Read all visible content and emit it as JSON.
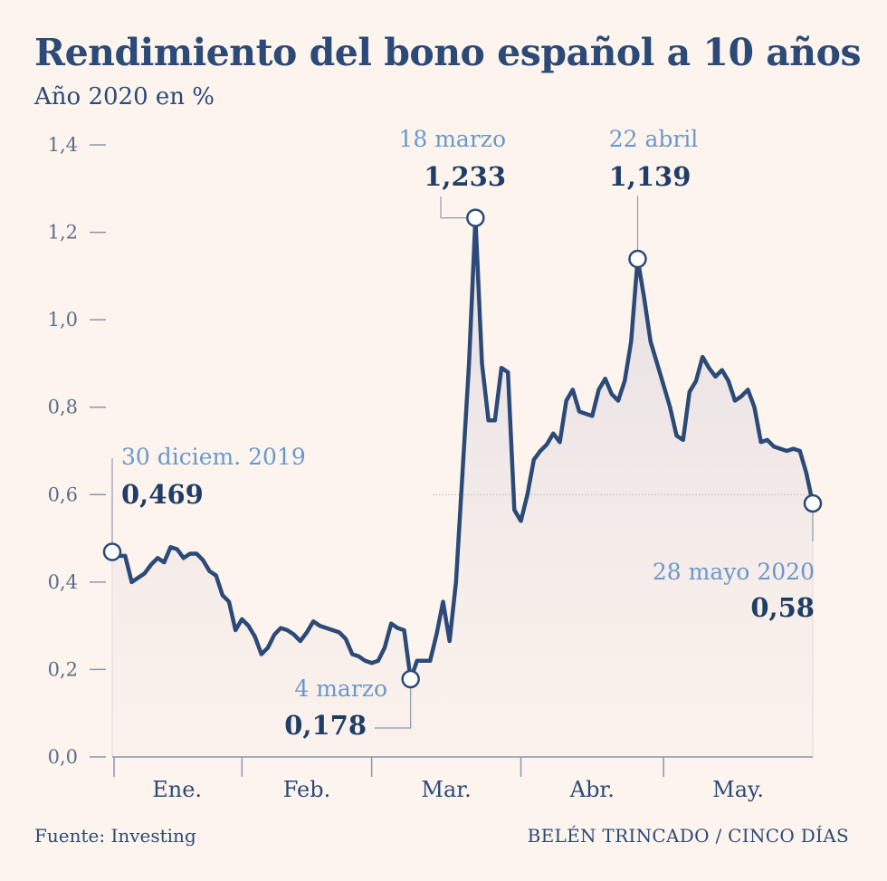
{
  "header": {
    "title": "Rendimiento del bono español a 10 años",
    "subtitle": "Año 2020 en %"
  },
  "footer": {
    "source": "Fuente: Investing",
    "credit": "BELÉN TRINCADO / CINCO DÍAS"
  },
  "colors": {
    "line": "#2b4a78",
    "annotation_date": "#6a98cc",
    "annotation_value": "#1f3d66",
    "axis": "#8a97ad",
    "background": "#fdf4ee"
  },
  "chart_data": {
    "type": "area",
    "ylim": [
      0,
      1.4
    ],
    "yticks": [
      0.0,
      0.2,
      0.4,
      0.6,
      0.8,
      1.0,
      1.2,
      1.4
    ],
    "ytick_labels": [
      "0,0",
      "0,2",
      "0,4",
      "0,6",
      "0,8",
      "1,0",
      "1,2",
      "1,4"
    ],
    "month_labels": [
      "Ene.",
      "Feb.",
      "Mar.",
      "Abr.",
      "May."
    ],
    "grid": false,
    "series": [
      {
        "values": [
          0.469,
          0.46,
          0.46,
          0.4,
          0.41,
          0.42,
          0.44,
          0.455,
          0.445,
          0.48,
          0.475,
          0.455,
          0.465,
          0.465,
          0.45,
          0.425,
          0.415,
          0.37,
          0.355,
          0.29,
          0.315,
          0.3,
          0.275,
          0.235,
          0.25,
          0.28,
          0.295,
          0.29,
          0.28,
          0.265,
          0.285,
          0.31,
          0.3,
          0.295,
          0.29,
          0.285,
          0.27,
          0.235,
          0.23,
          0.22,
          0.215,
          0.22,
          0.25,
          0.305,
          0.295,
          0.29,
          0.178,
          0.22,
          0.22,
          0.22,
          0.28,
          0.355,
          0.265,
          0.4,
          0.65,
          0.9,
          1.233,
          0.9,
          0.77,
          0.77,
          0.89,
          0.88,
          0.565,
          0.54,
          0.6,
          0.68,
          0.7,
          0.715,
          0.74,
          0.72,
          0.815,
          0.84,
          0.79,
          0.785,
          0.78,
          0.84,
          0.865,
          0.83,
          0.815,
          0.86,
          0.95,
          1.139,
          1.05,
          0.95,
          0.9,
          0.85,
          0.8,
          0.735,
          0.725,
          0.835,
          0.86,
          0.915,
          0.89,
          0.87,
          0.885,
          0.86,
          0.815,
          0.825,
          0.84,
          0.8,
          0.72,
          0.725,
          0.71,
          0.705,
          0.7,
          0.705,
          0.7,
          0.65,
          0.58
        ]
      }
    ],
    "month_boundaries": [
      0,
      20,
      40,
      63,
      85,
      108
    ],
    "annotations": [
      {
        "date": "30 diciem. 2019",
        "value": "0,469",
        "index": 0
      },
      {
        "date": "4 marzo",
        "value": "0,178",
        "index": 46
      },
      {
        "date": "18 marzo",
        "value": "1,233",
        "index": 56
      },
      {
        "date": "22 abril",
        "value": "1,139",
        "index": 81
      },
      {
        "date": "28 mayo 2020",
        "value": "0,58",
        "index": 108
      }
    ],
    "reference_line": 0.6
  }
}
